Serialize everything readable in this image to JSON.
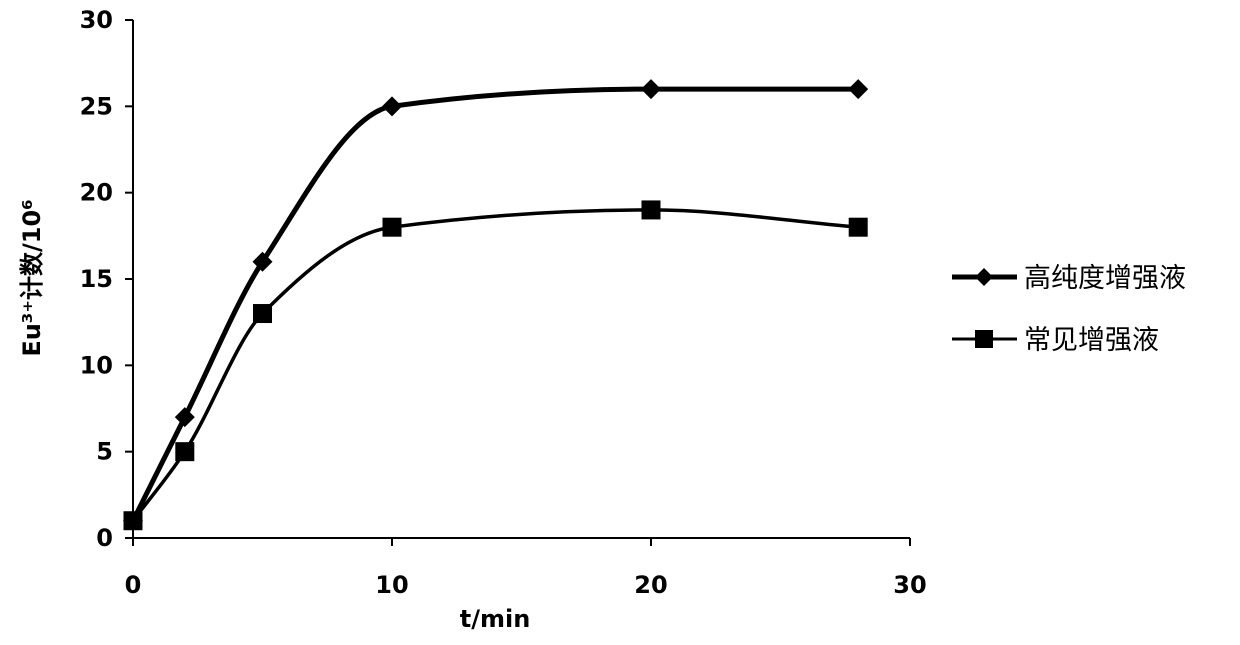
{
  "chart_data": {
    "type": "line",
    "smooth": true,
    "xlabel": "t/min",
    "ylabel": "Eu³⁺计数/10⁶",
    "xlim": [
      0,
      30
    ],
    "ylim": [
      0,
      30
    ],
    "xticks": [
      0,
      10,
      20,
      30
    ],
    "yticks": [
      0,
      5,
      10,
      15,
      20,
      25,
      30
    ],
    "grid": false,
    "legend_position": "right",
    "series": [
      {
        "name": "高纯度增强液",
        "marker": "diamond",
        "color": "#000000",
        "x": [
          0,
          2,
          5,
          10,
          20,
          28
        ],
        "y": [
          1,
          7,
          16,
          25,
          26,
          26
        ]
      },
      {
        "name": "常见增强液",
        "marker": "square",
        "color": "#000000",
        "x": [
          0,
          2,
          5,
          10,
          20,
          28
        ],
        "y": [
          1,
          5,
          13,
          18,
          19,
          18
        ]
      }
    ]
  }
}
